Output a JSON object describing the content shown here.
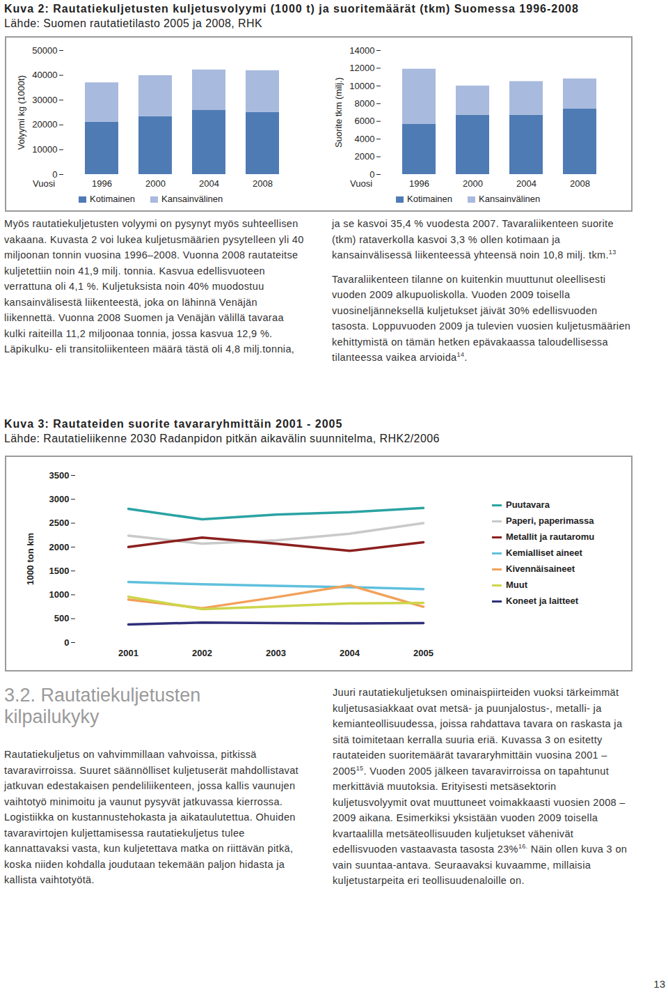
{
  "chart_data": [
    {
      "type": "bar",
      "stacked": true,
      "y_label": "Volyymi kg (1000t)",
      "x_label": "Vuosi",
      "categories": [
        "1996",
        "2000",
        "2004",
        "2008"
      ],
      "series": [
        {
          "name": "Kotimainen",
          "color": "#4f7bb5",
          "values": [
            21100,
            23400,
            26000,
            25100
          ]
        },
        {
          "name": "Kansainvälinen",
          "color": "#a8badd",
          "values": [
            15900,
            16500,
            16200,
            16800
          ]
        }
      ],
      "ylim": [
        0,
        50000
      ],
      "yticks": [
        0,
        10000,
        20000,
        30000,
        40000,
        50000
      ],
      "grid": false,
      "legend": "bottom"
    },
    {
      "type": "bar",
      "stacked": true,
      "y_label": "Suorite tkm (milj.)",
      "x_label": "Vuosi",
      "categories": [
        "1996",
        "2000",
        "2004",
        "2008"
      ],
      "series": [
        {
          "name": "Kotimainen",
          "color": "#4f7bb5",
          "values": [
            5700,
            6700,
            6700,
            7400
          ]
        },
        {
          "name": "Kansainvälinen",
          "color": "#a8badd",
          "values": [
            6200,
            3300,
            3800,
            3400
          ]
        }
      ],
      "ylim": [
        0,
        14000
      ],
      "yticks": [
        0,
        2000,
        4000,
        6000,
        8000,
        10000,
        12000,
        14000
      ],
      "grid": false,
      "legend": "bottom"
    },
    {
      "type": "line",
      "y_label": "1000 ton km",
      "categories": [
        "2001",
        "2002",
        "2003",
        "2004",
        "2005"
      ],
      "series": [
        {
          "name": "Puutavara",
          "color": "#2aa3a3",
          "values": [
            2800,
            2580,
            2680,
            2730,
            2820
          ]
        },
        {
          "name": "Paperi, paperimassa",
          "color": "#c9c9c9",
          "values": [
            2240,
            2070,
            2140,
            2280,
            2500
          ]
        },
        {
          "name": "Metallit ja rautaromu",
          "color": "#8c1f1f",
          "values": [
            2000,
            2200,
            2070,
            1920,
            2100
          ]
        },
        {
          "name": "Kemialliset aineet",
          "color": "#5fc0dc",
          "values": [
            1270,
            1220,
            1190,
            1160,
            1120
          ]
        },
        {
          "name": "Kivennäisaineet",
          "color": "#f2a15a",
          "values": [
            900,
            720,
            950,
            1200,
            750
          ]
        },
        {
          "name": "Muut",
          "color": "#cdd64a",
          "values": [
            960,
            700,
            760,
            820,
            830
          ]
        },
        {
          "name": "Koneet ja laitteet",
          "color": "#2f2f7a",
          "values": [
            380,
            420,
            410,
            400,
            410
          ]
        }
      ],
      "ylim": [
        0,
        3500
      ],
      "yticks": [
        0,
        500,
        1000,
        1500,
        2000,
        2500,
        3000,
        3500
      ],
      "grid": false,
      "legend": "right"
    }
  ],
  "document": {
    "figure2": {
      "title": "Kuva 2: Rautatiekuljetusten kuljetusvolyymi (1000 t) ja suoritemäärät (tkm) Suomessa 1996-2008",
      "source": "Lähde: Suomen rautatietilasto 2005 ja 2008, RHK"
    },
    "text1": [
      [
        {
          "text": "Myös rautatiekuljetusten volyymi on pysynyt myös suhteellisen vakaana. Kuvasta 2 voi lukea kuljetusmäärien pysytelleen yli 40 miljoonan tonnin vuosina 1996–2008. Vuonna 2008 rautateitse kuljetettiin noin 41,9 milj. tonnia. Kasvua edellisvuoteen verrattuna oli 4,1 %. Kuljetuksista noin 40% muodostuu kansainvälisestä liikenteestä, joka on lähinnä Venäjän liikennettä. Vuonna 2008 Suomen ja Venäjän välillä tavaraa kulki raiteilla 11,2 miljoonaa tonnia, jossa kasvua 12,9 %. Läpikulku- eli transitoliikenteen määrä tästä oli 4,8 milj.tonnia, ja se kasvoi 35,4 % vuodesta 2007. Tavaraliikenteen suorite (tkm) rataverkolla kasvoi 3,3 % ollen kotimaan ja kansainvälisessä liikenteessä yhteensä noin 10,8 milj. tkm."
        },
        {
          "sup": "13"
        }
      ],
      [
        {
          "text": "Tavaraliikenteen tilanne on kuitenkin muuttunut oleellisesti vuoden 2009 alkupuoliskolla. Vuoden 2009 toisella vuosineljänneksellä kuljetukset jäivät 30% edellisvuoden tasosta. Loppuvuoden 2009 ja tulevien vuosien kuljetusmäärien kehittymistä on tämän hetken epävakaassa taloudellisessa tilanteessa vaikea arvioida"
        },
        {
          "sup": "14"
        },
        {
          "text": "."
        }
      ]
    ],
    "figure3": {
      "title": "Kuva 3: Rautateiden suorite tavararyhmittäin 2001 - 2005",
      "source": "Lähde: Rautatieliikenne 2030 Radanpidon pitkän aikavälin suunnitelma, RHK2/2006"
    },
    "section": {
      "heading": "3.2. Rautatiekuljetusten kilpailukyky",
      "left": [
        [
          {
            "text": "Rautatiekuljetus on vahvimmillaan vahvoissa, pitkissä tavaravirroissa. Suuret säännölliset kuljetuserät mahdollistavat jatkuvan edestakaisen pendeliliikenteen, jossa kallis vaunujen vaihtotyö minimoitu ja vaunut pysyvät jatkuvassa kierrossa. Logistiikka on kustannustehokasta ja aikataulutettua. Ohuiden tavaravirtojen kuljettamisessa rautatiekuljetus tulee kannattavaksi vasta, kun kuljetettava matka on riittävän pitkä, koska niiden kohdalla joudutaan tekemään paljon hidasta ja kallista vaihtotyötä."
          }
        ]
      ],
      "right": [
        [
          {
            "text": "Juuri rautatiekuljetuksen ominaispiirteiden vuoksi tärkeimmät kuljetusasiakkaat ovat metsä- ja puunjalostus-, metalli- ja kemianteollisuudessa, joissa rahdattava tavara on raskasta ja sitä toimitetaan kerralla suuria eriä. Kuvassa 3 on esitetty rautateiden suoritemäärät tavararyhmittäin vuosina 2001 – 2005"
          },
          {
            "sup": "15"
          },
          {
            "text": ". Vuoden 2005 jälkeen tavaravirroissa on tapahtunut merkittäviä muutoksia. Erityisesti metsäsektorin kuljetusvolyymit ovat muuttuneet voimakkaasti vuosien 2008 – 2009 aikana. Esimerkiksi yksistään vuoden 2009 toisella kvartaalilla metsäteollisuuden kuljetukset vähenivät edellisvuoden vastaavasta tasosta 23%"
          },
          {
            "sup": "16."
          },
          {
            "text": " Näin ollen kuva 3 on vain suuntaa-antava. Seuraavaksi kuvaamme, millaisia kuljetustarpeita eri teollisuudenaloille on."
          }
        ]
      ]
    },
    "page_number": "13"
  }
}
